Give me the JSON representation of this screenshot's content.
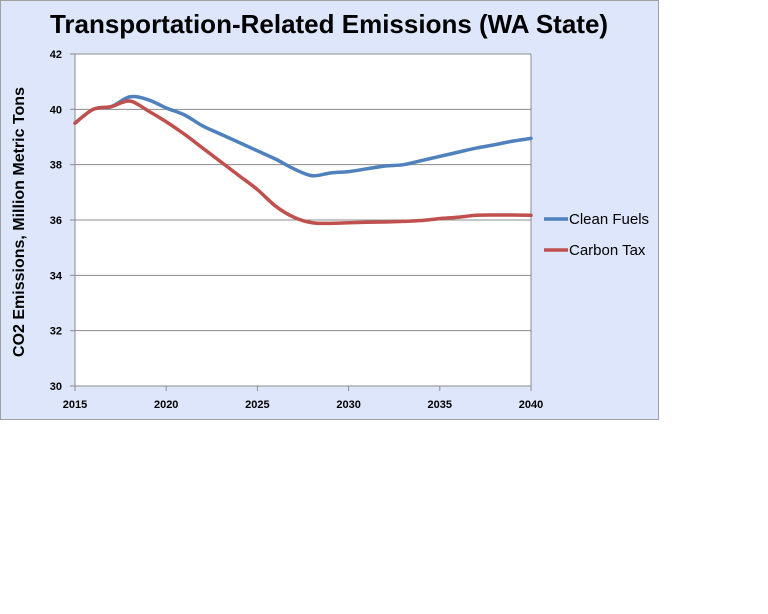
{
  "chart_data": {
    "type": "line",
    "title": "Transportation-Related Emissions (WA State)",
    "xlabel": "",
    "ylabel": "CO2 Emissions, Million Metric Tons",
    "xlim": [
      2015,
      2040
    ],
    "ylim": [
      30,
      42
    ],
    "x_ticks": [
      "2015",
      "2020",
      "2025",
      "2030",
      "2035",
      "2040"
    ],
    "y_ticks": [
      "30",
      "32",
      "34",
      "36",
      "38",
      "40",
      "42"
    ],
    "grid": "horizontal",
    "legend_position": "right",
    "series": [
      {
        "name": "Clean Fuels",
        "color": "#4f81bd",
        "x": [
          2015,
          2016,
          2017,
          2018,
          2019,
          2020,
          2021,
          2022,
          2023,
          2024,
          2025,
          2026,
          2027,
          2028,
          2029,
          2030,
          2031,
          2032,
          2033,
          2034,
          2035,
          2036,
          2037,
          2038,
          2039,
          2040
        ],
        "values": [
          39.5,
          40.0,
          40.1,
          40.45,
          40.35,
          40.05,
          39.8,
          39.4,
          39.1,
          38.8,
          38.5,
          38.2,
          37.85,
          37.6,
          37.7,
          37.75,
          37.85,
          37.95,
          38.0,
          38.15,
          38.3,
          38.45,
          38.6,
          38.72,
          38.85,
          38.95
        ]
      },
      {
        "name": "Carbon Tax",
        "color": "#c0504d",
        "x": [
          2015,
          2016,
          2017,
          2018,
          2019,
          2020,
          2021,
          2022,
          2023,
          2024,
          2025,
          2026,
          2027,
          2028,
          2029,
          2030,
          2031,
          2032,
          2033,
          2034,
          2035,
          2036,
          2037,
          2038,
          2039,
          2040
        ],
        "values": [
          39.5,
          40.0,
          40.1,
          40.3,
          39.95,
          39.55,
          39.1,
          38.6,
          38.1,
          37.6,
          37.1,
          36.5,
          36.1,
          35.9,
          35.88,
          35.9,
          35.92,
          35.93,
          35.95,
          35.98,
          36.05,
          36.1,
          36.17,
          36.18,
          36.18,
          36.17
        ]
      }
    ]
  }
}
